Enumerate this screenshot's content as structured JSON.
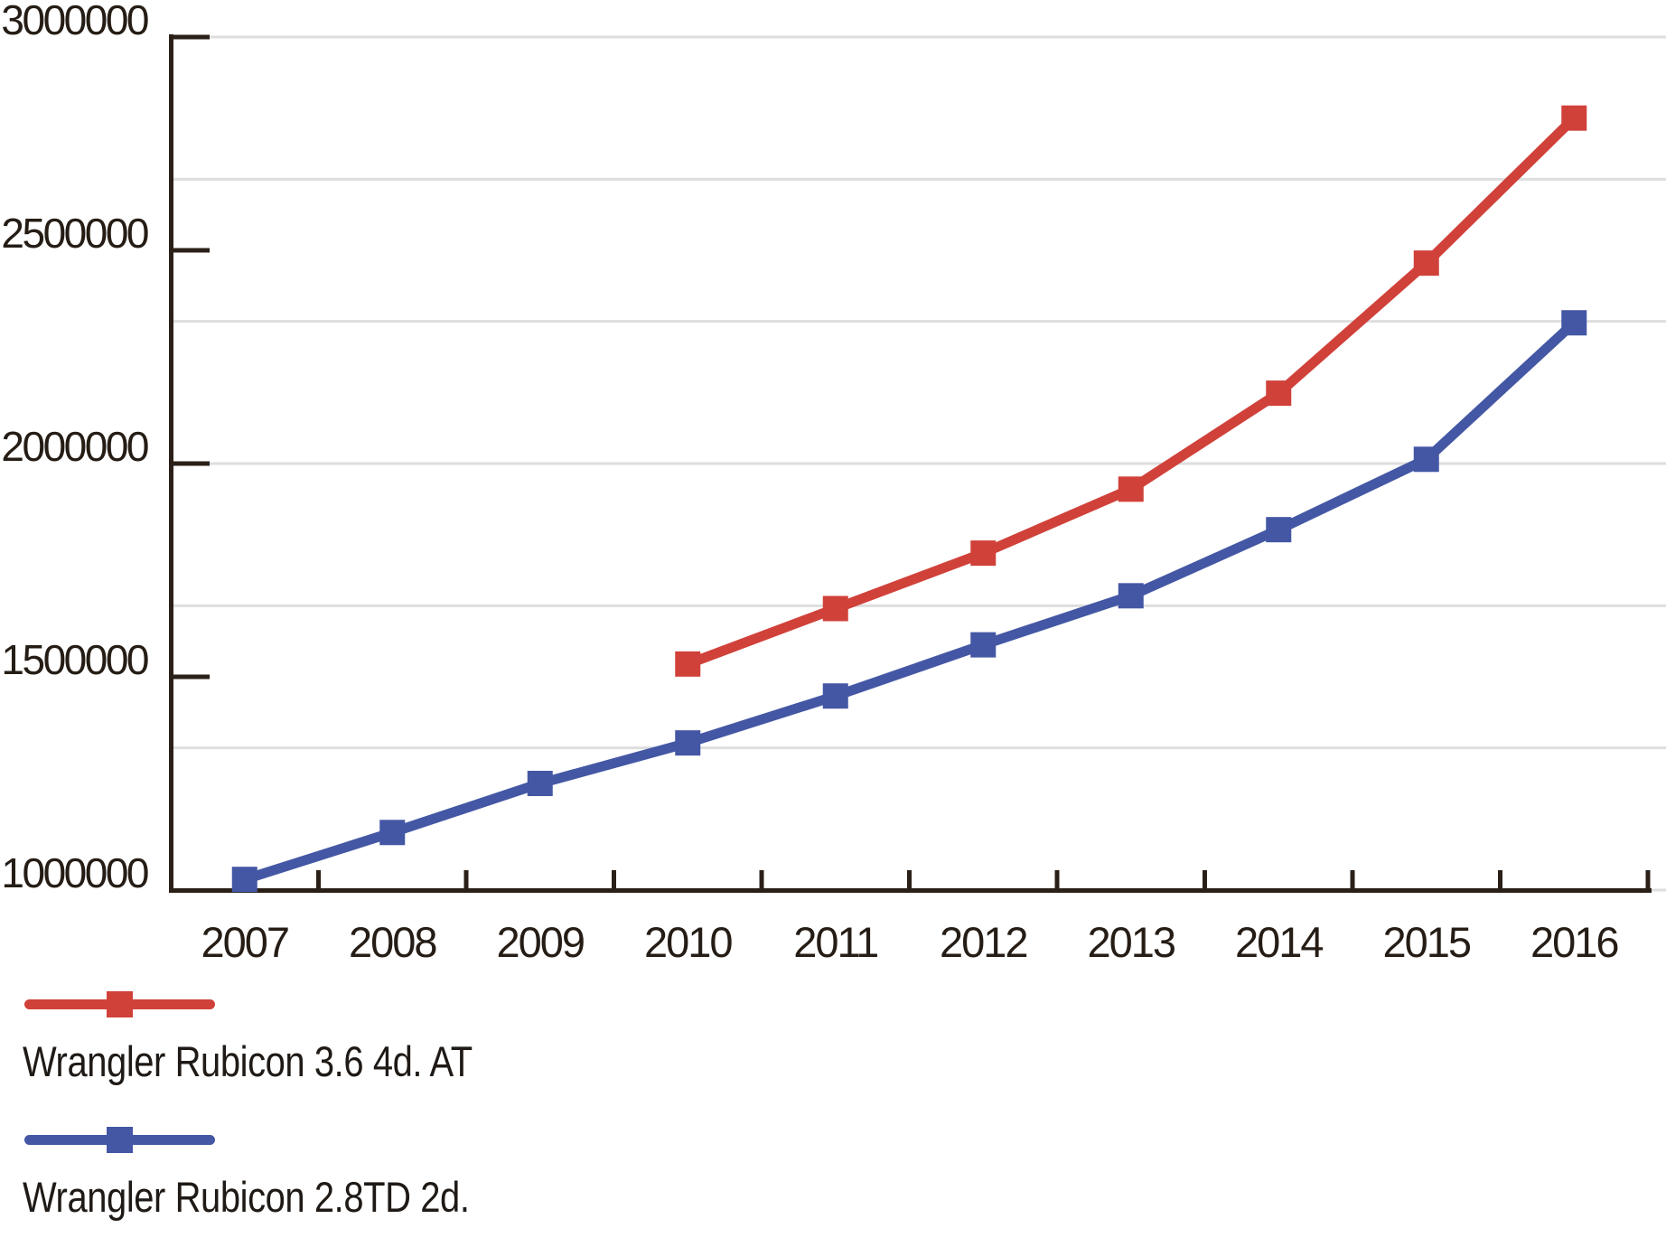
{
  "chart_data": {
    "type": "line",
    "title": "",
    "xlabel": "",
    "ylabel": "",
    "categories": [
      "2007",
      "2008",
      "2009",
      "2010",
      "2011",
      "2012",
      "2013",
      "2014",
      "2015",
      "2016"
    ],
    "series": [
      {
        "name": "Wrangler Rubicon 3.6 4d. AT",
        "color": "#d0413a",
        "marker": "square",
        "start_index": 3,
        "values": [
          1530000,
          1660000,
          1790000,
          1940000,
          2165000,
          2470000,
          2810000
        ]
      },
      {
        "name": "Wrangler Rubicon 2.8TD 2d.",
        "color": "#4457a4",
        "marker": "square",
        "start_index": 0,
        "values": [
          1025000,
          1135000,
          1250000,
          1345000,
          1455000,
          1575000,
          1690000,
          1845000,
          2010000,
          2330000
        ]
      }
    ],
    "ylim": [
      1000000,
      3000000
    ],
    "y_tick_values": [
      1000000,
      1500000,
      2000000,
      2500000,
      3000000
    ],
    "y_tick_labels": [
      "1000000",
      "1500000",
      "2000000",
      "2500000",
      "3000000"
    ],
    "gridlines": "horizontal, 7 lines, every 333333 (thirds of 1000000)",
    "grid_color": "#dedede",
    "axis_color": "#2b2018",
    "text_color": "#251d15",
    "legend_position": "bottom-left"
  }
}
